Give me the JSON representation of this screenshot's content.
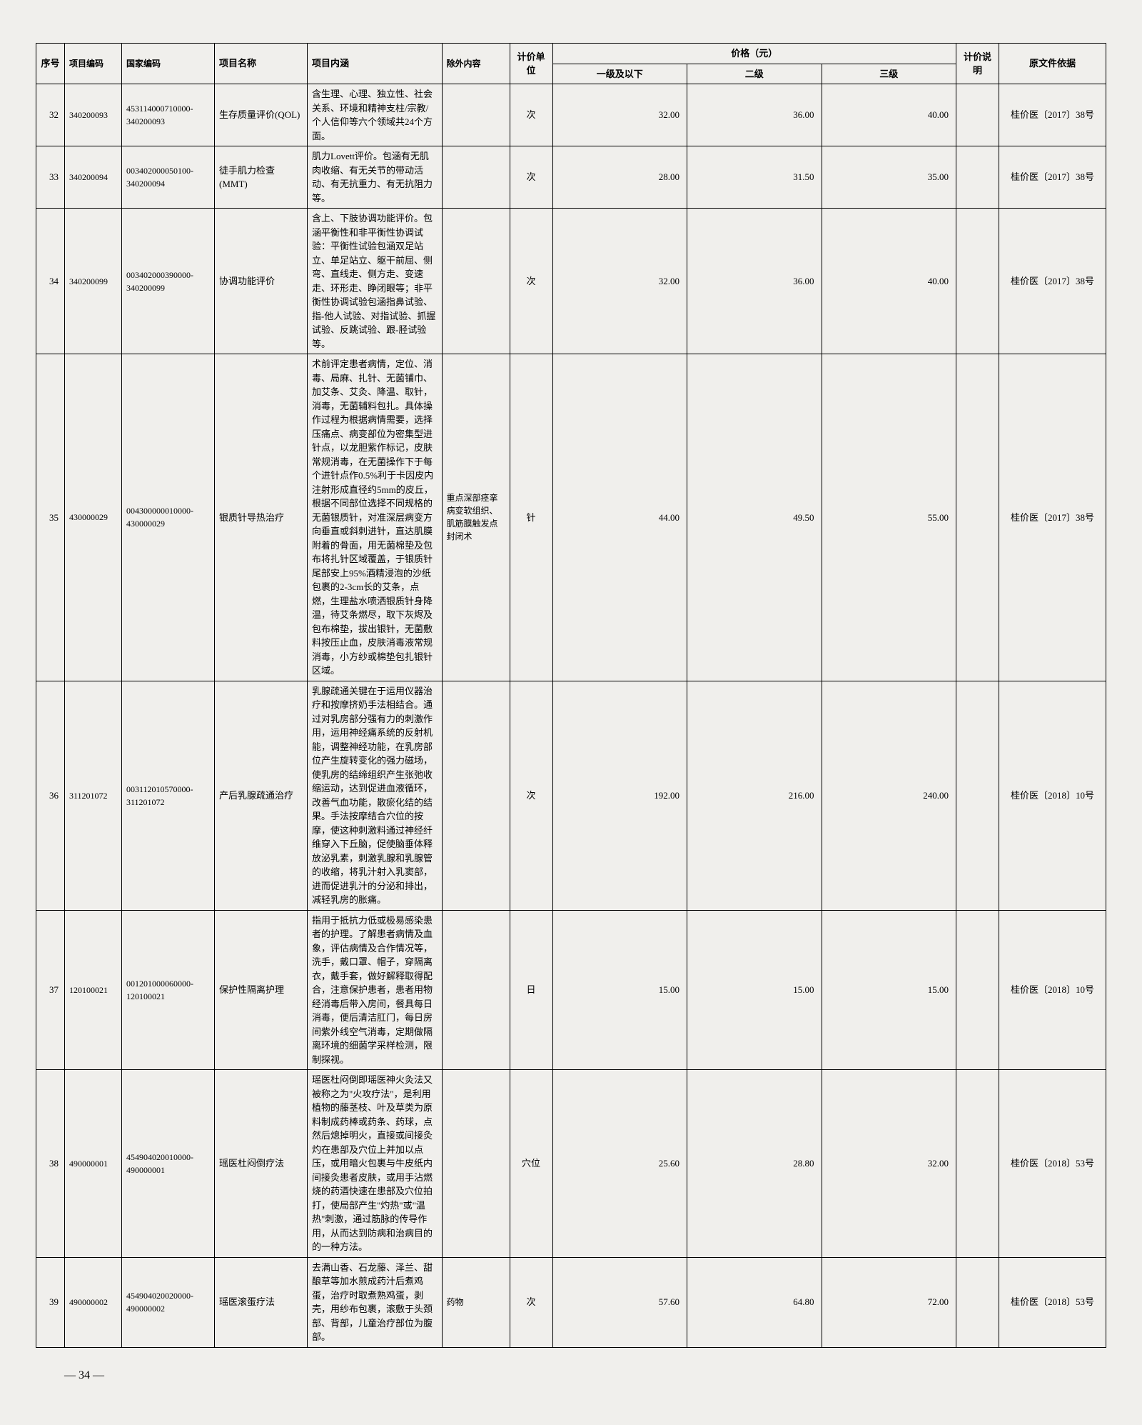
{
  "table": {
    "header": {
      "seq": "序号",
      "code": "项目编码",
      "ncode": "国家编码",
      "name": "项目名称",
      "desc": "项目内涵",
      "excl": "除外内容",
      "unit": "计价单位",
      "price_group": "价格（元）",
      "price1": "一级及以下",
      "price2": "二级",
      "price3": "三级",
      "note": "计价说明",
      "src": "原文件依据"
    },
    "rows": [
      {
        "seq": "32",
        "code": "340200093",
        "ncode": "453114000710000-340200093",
        "name": "生存质量评价(QOL)",
        "desc": "含生理、心理、独立性、社会关系、环境和精神支柱/宗教/个人信仰等六个领域共24个方面。",
        "excl": "",
        "unit": "次",
        "p1": "32.00",
        "p2": "36.00",
        "p3": "40.00",
        "note": "",
        "src": "桂价医〔2017〕38号"
      },
      {
        "seq": "33",
        "code": "340200094",
        "ncode": "003402000050100-340200094",
        "name": "徒手肌力检查(MMT)",
        "desc": "肌力Lovett评价。包涵有无肌肉收缩、有无关节的带动活动、有无抗重力、有无抗阻力等。",
        "excl": "",
        "unit": "次",
        "p1": "28.00",
        "p2": "31.50",
        "p3": "35.00",
        "note": "",
        "src": "桂价医〔2017〕38号"
      },
      {
        "seq": "34",
        "code": "340200099",
        "ncode": "003402000390000-340200099",
        "name": "协调功能评价",
        "desc": "含上、下肢协调功能评价。包涵平衡性和非平衡性协调试验：平衡性试验包涵双足站立、单足站立、躯干前屈、侧弯、直线走、侧方走、变速走、环形走、睁闭眼等；非平衡性协调试验包涵指鼻试验、指-他人试验、对指试验、抓握试验、反跳试验、跟-胫试验等。",
        "excl": "",
        "unit": "次",
        "p1": "32.00",
        "p2": "36.00",
        "p3": "40.00",
        "note": "",
        "src": "桂价医〔2017〕38号"
      },
      {
        "seq": "35",
        "code": "430000029",
        "ncode": "004300000010000-430000029",
        "name": "银质针导热治疗",
        "desc": "术前评定患者病情，定位、消毒、局麻、扎针、无菌铺巾、加艾条、艾灸、降温、取针，消毒，无菌辅料包扎。具体操作过程为根据病情需要，选择压痛点、病变部位为密集型进针点，以龙胆紫作标记，皮肤常规消毒，在无菌操作下于每个进针点作0.5%利于卡因皮内注射形成直径约5mm的皮丘，根据不同部位选择不同规格的无菌银质针，对准深层病变方向垂直或斜刺进针，直达肌膜附着的骨面，用无菌棉垫及包布将扎针区域覆盖，于银质针尾部安上95%酒精浸泡的沙纸包裹的2-3cm长的艾条，点燃，生理盐水喷洒银质针身降温，待艾条燃尽，取下灰烬及包布棉垫，拔出银针，无菌敷料按压止血，皮肤消毒液常规消毒，小方纱或棉垫包扎银针区域。",
        "excl": "重点深部痉挛病变软组织、肌筋膜触发点封闭术",
        "unit": "针",
        "p1": "44.00",
        "p2": "49.50",
        "p3": "55.00",
        "note": "",
        "src": "桂价医〔2017〕38号"
      },
      {
        "seq": "36",
        "code": "311201072",
        "ncode": "003112010570000-311201072",
        "name": "产后乳腺疏通治疗",
        "desc": "乳腺疏通关键在于运用仪器治疗和按摩挤奶手法相结合。通过对乳房部分强有力的刺激作用，运用神经痛系统的反射机能，调整神经功能，在乳房部位产生旋转变化的强力磁场，使乳房的结缔组织产生张弛收缩运动，达到促进血液循环，改善气血功能，散瘀化结的结果。手法按摩结合穴位的按摩，使这种刺激料通过神经纤维穿入下丘脑，促使脑垂体释放泌乳素，刺激乳腺和乳腺管的收缩，将乳汁射入乳窦部，进而促进乳汁的分泌和排出，减轻乳房的胀痛。",
        "excl": "",
        "unit": "次",
        "p1": "192.00",
        "p2": "216.00",
        "p3": "240.00",
        "note": "",
        "src": "桂价医〔2018〕10号"
      },
      {
        "seq": "37",
        "code": "120100021",
        "ncode": "001201000060000-120100021",
        "name": "保护性隔离护理",
        "desc": "指用于抵抗力低或极易感染患者的护理。了解患者病情及血象，评估病情及合作情况等，洗手，戴口罩、帽子，穿隔离衣，戴手套，做好解释取得配合，注意保护患者，患者用物经消毒后带入房间，餐具每日消毒，便后清洁肛门，每日房间紫外线空气消毒，定期做隔离环境的细菌学采样检测，限制探视。",
        "excl": "",
        "unit": "日",
        "p1": "15.00",
        "p2": "15.00",
        "p3": "15.00",
        "note": "",
        "src": "桂价医〔2018〕10号"
      },
      {
        "seq": "38",
        "code": "490000001",
        "ncode": "454904020010000-490000001",
        "name": "瑶医杜闷倒疗法",
        "desc": "瑶医杜闷倒即瑶医神火灸法又被称之为\"火攻疗法\"，是利用植物的藤茎枝、叶及草类为原料制成药棒或药条、药球，点然后熄掉明火，直接或间接灸灼在患部及穴位上并加以点压，或用暗火包裹与牛皮纸内间接灸患者皮肤，或用手沾燃烧的药酒快速在患部及穴位拍打，使局部产生\"灼热\"或\"温热\"刺激，通过筋脉的传导作用，从而达到防病和治病目的的一种方法。",
        "excl": "",
        "unit": "穴位",
        "p1": "25.60",
        "p2": "28.80",
        "p3": "32.00",
        "note": "",
        "src": "桂价医〔2018〕53号"
      },
      {
        "seq": "39",
        "code": "490000002",
        "ncode": "454904020020000-490000002",
        "name": "瑶医滚蛋疗法",
        "desc": "去满山香、石龙藤、泽兰、甜酿草等加水煎成药汁后煮鸡蛋，治疗时取煮熟鸡蛋，剥壳，用纱布包裹，滚敷于头颈部、背部，儿童治疗部位为腹部。",
        "excl": "药物",
        "unit": "次",
        "p1": "57.60",
        "p2": "64.80",
        "p3": "72.00",
        "note": "",
        "src": "桂价医〔2018〕53号"
      }
    ]
  },
  "page_number": "— 34 —"
}
